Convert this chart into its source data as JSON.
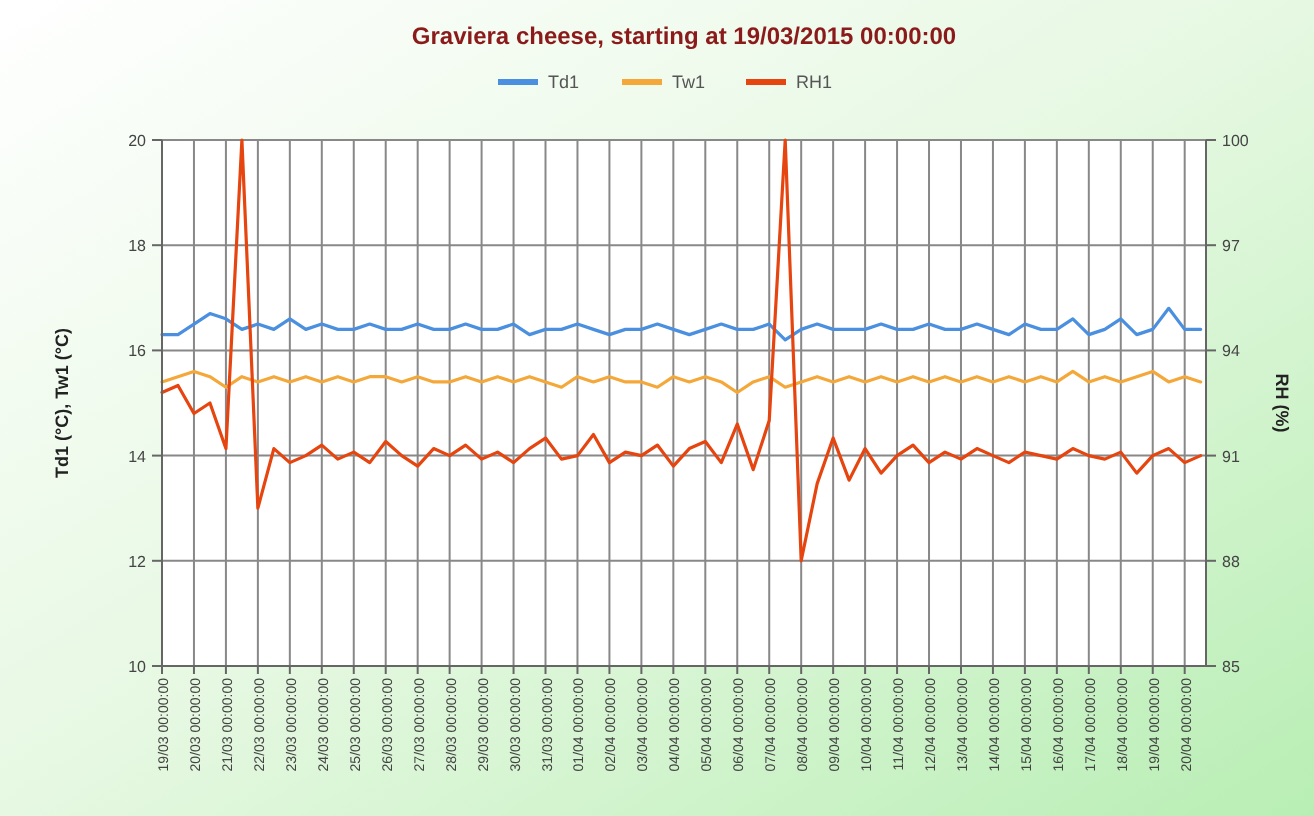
{
  "chart_data": {
    "type": "line",
    "title": "Graviera cheese, starting at 19/03/2015 00:00:00",
    "ylabel": "Td1 (°C), Tw1 (°C)",
    "y2label": "RH (%)",
    "legend": "top",
    "grid": true,
    "line_style": "solid",
    "marker": "none",
    "x": [
      "2015-03-19T00:00",
      "2015-03-19T12:00",
      "2015-03-20T00:00",
      "2015-03-20T12:00",
      "2015-03-21T00:00",
      "2015-03-21T12:00",
      "2015-03-22T00:00",
      "2015-03-22T12:00",
      "2015-03-23T00:00",
      "2015-03-23T12:00",
      "2015-03-24T00:00",
      "2015-03-24T12:00",
      "2015-03-25T00:00",
      "2015-03-25T12:00",
      "2015-03-26T00:00",
      "2015-03-26T12:00",
      "2015-03-27T00:00",
      "2015-03-27T12:00",
      "2015-03-28T00:00",
      "2015-03-28T12:00",
      "2015-03-29T00:00",
      "2015-03-29T12:00",
      "2015-03-30T00:00",
      "2015-03-30T12:00",
      "2015-03-31T00:00",
      "2015-03-31T12:00",
      "2015-04-01T00:00",
      "2015-04-01T12:00",
      "2015-04-02T00:00",
      "2015-04-02T12:00",
      "2015-04-03T00:00",
      "2015-04-03T12:00",
      "2015-04-04T00:00",
      "2015-04-04T12:00",
      "2015-04-05T00:00",
      "2015-04-05T12:00",
      "2015-04-06T00:00",
      "2015-04-06T12:00",
      "2015-04-07T00:00",
      "2015-04-07T12:00",
      "2015-04-08T00:00",
      "2015-04-08T12:00",
      "2015-04-09T00:00",
      "2015-04-09T12:00",
      "2015-04-10T00:00",
      "2015-04-10T12:00",
      "2015-04-11T00:00",
      "2015-04-11T12:00",
      "2015-04-12T00:00",
      "2015-04-12T12:00",
      "2015-04-13T00:00",
      "2015-04-13T12:00",
      "2015-04-14T00:00",
      "2015-04-14T12:00",
      "2015-04-15T00:00",
      "2015-04-15T12:00",
      "2015-04-16T00:00",
      "2015-04-16T12:00",
      "2015-04-17T00:00",
      "2015-04-17T12:00",
      "2015-04-18T00:00",
      "2015-04-18T12:00",
      "2015-04-19T00:00",
      "2015-04-19T12:00",
      "2015-04-20T00:00",
      "2015-04-20T12:00"
    ],
    "xlim": [
      "2015-03-19T00:00",
      "2015-04-20T16:00"
    ],
    "xticks": [
      {
        "value": "2015-03-19T00:00",
        "label": "19/03 00:00:00"
      },
      {
        "value": "2015-03-20T00:00",
        "label": "20/03 00:00:00"
      },
      {
        "value": "2015-03-21T00:00",
        "label": "21/03 00:00:00"
      },
      {
        "value": "2015-03-22T00:00",
        "label": "22/03 00:00:00"
      },
      {
        "value": "2015-03-23T00:00",
        "label": "23/03 00:00:00"
      },
      {
        "value": "2015-03-24T00:00",
        "label": "24/03 00:00:00"
      },
      {
        "value": "2015-03-25T00:00",
        "label": "25/03 00:00:00"
      },
      {
        "value": "2015-03-26T00:00",
        "label": "26/03 00:00:00"
      },
      {
        "value": "2015-03-27T00:00",
        "label": "27/03 00:00:00"
      },
      {
        "value": "2015-03-28T00:00",
        "label": "28/03 00:00:00"
      },
      {
        "value": "2015-03-29T00:00",
        "label": "29/03 00:00:00"
      },
      {
        "value": "2015-03-30T00:00",
        "label": "30/03 00:00:00"
      },
      {
        "value": "2015-03-31T00:00",
        "label": "31/03 00:00:00"
      },
      {
        "value": "2015-04-01T00:00",
        "label": "01/04 00:00:00"
      },
      {
        "value": "2015-04-02T00:00",
        "label": "02/04 00:00:00"
      },
      {
        "value": "2015-04-03T00:00",
        "label": "03/04 00:00:00"
      },
      {
        "value": "2015-04-04T00:00",
        "label": "04/04 00:00:00"
      },
      {
        "value": "2015-04-05T00:00",
        "label": "05/04 00:00:00"
      },
      {
        "value": "2015-04-06T00:00",
        "label": "06/04 00:00:00"
      },
      {
        "value": "2015-04-07T00:00",
        "label": "07/04 00:00:00"
      },
      {
        "value": "2015-04-08T00:00",
        "label": "08/04 00:00:00"
      },
      {
        "value": "2015-04-09T00:00",
        "label": "09/04 00:00:00"
      },
      {
        "value": "2015-04-10T00:00",
        "label": "10/04 00:00:00"
      },
      {
        "value": "2015-04-11T00:00",
        "label": "11/04 00:00:00"
      },
      {
        "value": "2015-04-12T00:00",
        "label": "12/04 00:00:00"
      },
      {
        "value": "2015-04-13T00:00",
        "label": "13/04 00:00:00"
      },
      {
        "value": "2015-04-14T00:00",
        "label": "14/04 00:00:00"
      },
      {
        "value": "2015-04-15T00:00",
        "label": "15/04 00:00:00"
      },
      {
        "value": "2015-04-16T00:00",
        "label": "16/04 00:00:00"
      },
      {
        "value": "2015-04-17T00:00",
        "label": "17/04 00:00:00"
      },
      {
        "value": "2015-04-18T00:00",
        "label": "18/04 00:00:00"
      },
      {
        "value": "2015-04-19T00:00",
        "label": "19/04 00:00:00"
      },
      {
        "value": "2015-04-20T00:00",
        "label": "20/04 00:00:00"
      }
    ],
    "ylim": [
      10,
      20
    ],
    "yticks": [
      10,
      12,
      14,
      16,
      18,
      20
    ],
    "y2lim": [
      85,
      100
    ],
    "y2ticks": [
      85,
      88,
      91,
      94,
      97,
      100
    ],
    "series": [
      {
        "name": "Td1",
        "color": "#4a8fe0",
        "values": [
          16.3,
          16.3,
          16.5,
          16.7,
          16.6,
          16.4,
          16.5,
          16.4,
          16.6,
          16.4,
          16.5,
          16.4,
          16.4,
          16.5,
          16.4,
          16.4,
          16.5,
          16.4,
          16.4,
          16.5,
          16.4,
          16.4,
          16.5,
          16.3,
          16.4,
          16.4,
          16.5,
          16.4,
          16.3,
          16.4,
          16.4,
          16.5,
          16.4,
          16.3,
          16.4,
          16.5,
          16.4,
          16.4,
          16.5,
          16.2,
          16.4,
          16.5,
          16.4,
          16.4,
          16.4,
          16.5,
          16.4,
          16.4,
          16.5,
          16.4,
          16.4,
          16.5,
          16.4,
          16.3,
          16.5,
          16.4,
          16.4,
          16.6,
          16.3,
          16.4,
          16.6,
          16.3,
          16.4,
          16.8,
          16.4,
          16.4
        ]
      },
      {
        "name": "Tw1",
        "color": "#f5a83a",
        "values": [
          15.4,
          15.5,
          15.6,
          15.5,
          15.3,
          15.5,
          15.4,
          15.5,
          15.4,
          15.5,
          15.4,
          15.5,
          15.4,
          15.5,
          15.5,
          15.4,
          15.5,
          15.4,
          15.4,
          15.5,
          15.4,
          15.5,
          15.4,
          15.5,
          15.4,
          15.3,
          15.5,
          15.4,
          15.5,
          15.4,
          15.4,
          15.3,
          15.5,
          15.4,
          15.5,
          15.4,
          15.2,
          15.4,
          15.5,
          15.3,
          15.4,
          15.5,
          15.4,
          15.5,
          15.4,
          15.5,
          15.4,
          15.5,
          15.4,
          15.5,
          15.4,
          15.5,
          15.4,
          15.5,
          15.4,
          15.5,
          15.4,
          15.6,
          15.4,
          15.5,
          15.4,
          15.5,
          15.6,
          15.4,
          15.5,
          15.4
        ]
      },
      {
        "name": "RH1",
        "color": "#e6450f",
        "axis": "y2",
        "values": [
          92.8,
          93.0,
          92.2,
          92.5,
          91.2,
          100,
          89.5,
          91.2,
          90.8,
          91.0,
          91.3,
          90.9,
          91.1,
          90.8,
          91.4,
          91.0,
          90.7,
          91.2,
          91.0,
          91.3,
          90.9,
          91.1,
          90.8,
          91.2,
          91.5,
          90.9,
          91.0,
          91.6,
          90.8,
          91.1,
          91.0,
          91.3,
          90.7,
          91.2,
          91.4,
          90.8,
          91.9,
          90.6,
          92.0,
          100,
          88,
          90.2,
          91.5,
          90.3,
          91.2,
          90.5,
          91.0,
          91.3,
          90.8,
          91.1,
          90.9,
          91.2,
          91.0,
          90.8,
          91.1,
          91.0,
          90.9,
          91.2,
          91.0,
          90.9,
          91.1,
          90.5,
          91.0,
          91.2,
          90.8,
          91.0
        ]
      }
    ]
  }
}
